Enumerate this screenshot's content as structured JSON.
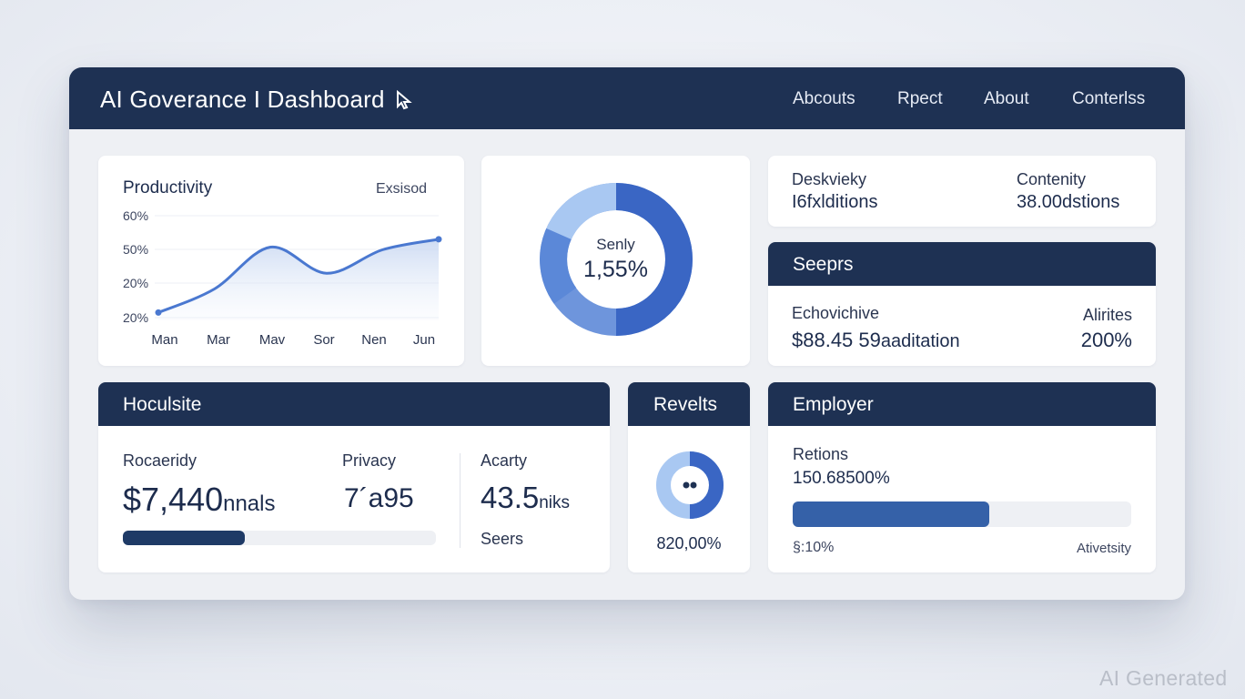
{
  "header": {
    "title": "AI Goverance I Dashboard",
    "nav": [
      "Abcouts",
      "Rpect",
      "About",
      "Conterlss"
    ]
  },
  "productivity": {
    "title": "Productivity",
    "action": "Exsisod",
    "chart_data": {
      "type": "area",
      "title": "Productivity",
      "categories": [
        "Man",
        "Mar",
        "Mav",
        "Sor",
        "Nen",
        "Jun"
      ],
      "y_tick_labels": [
        "60%",
        "50%",
        "20%",
        "20%"
      ],
      "ylim": [
        20,
        60
      ],
      "series": [
        {
          "values": [
            23,
            32,
            48,
            38,
            47,
            51
          ]
        }
      ],
      "grid": true
    }
  },
  "donut": {
    "label": "Senly",
    "value": "1,55%",
    "percent": 0.5,
    "colors": {
      "primary": "#3a66c4",
      "light": "#a9c8f2",
      "mid": "#5b88d8"
    }
  },
  "top_stats": {
    "left_label": "Deskvieky",
    "left_value": "I6fxlditions",
    "right_label": "Contenity",
    "right_value": "38.00dstions"
  },
  "seeprs": {
    "title": "Seeprs",
    "left_label": "Echovichive",
    "left_value": "$88.45 59",
    "left_suffix": "aaditation",
    "right_label": "Alirites",
    "right_value": "200%"
  },
  "hocules": {
    "title": "Hoculsite",
    "col1_label": "Rocaeridy",
    "col1_value": "$7,440",
    "col1_suffix": "nnals",
    "col2_label": "Privacy",
    "col2_value": "7´a95",
    "col3_label": "Acarty",
    "col3_value": "43.5",
    "col3_suffix": "niks",
    "col3_sub": "Seers",
    "progress": 0.39
  },
  "revelts": {
    "title": "Revelts",
    "value": "820,00%",
    "percent": 0.5
  },
  "employer": {
    "title": "Employer",
    "label": "Retions",
    "value": "150.68500%",
    "progress": 0.58,
    "footer_left": "§:10%",
    "footer_right": "Ativetsity"
  },
  "watermark": "AI Generated"
}
